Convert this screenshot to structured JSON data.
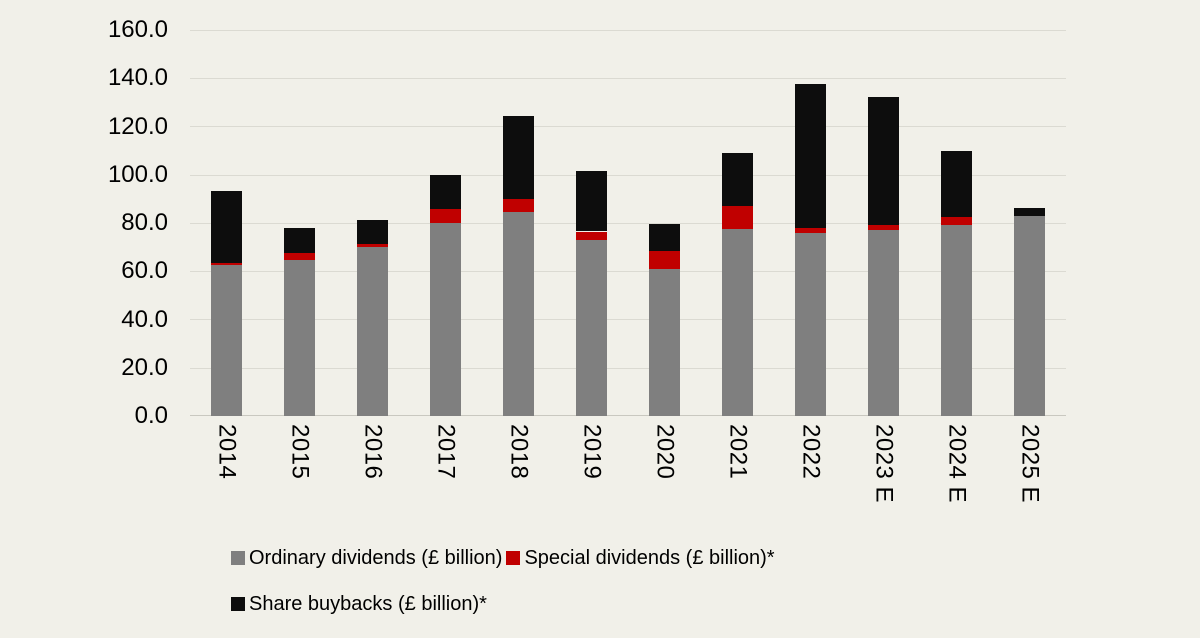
{
  "chart_data": {
    "type": "bar",
    "stacked": true,
    "title": "",
    "categories": [
      "2014",
      "2015",
      "2016",
      "2017",
      "2018",
      "2019",
      "2020",
      "2021",
      "2022",
      "2023 E",
      "2024 E",
      "2025 E"
    ],
    "series": [
      {
        "name": "Ordinary dividends (£ billion)",
        "key": "ordinary-dividends",
        "color": "#7f7f7f",
        "values": [
          62.5,
          64.5,
          70.0,
          80.0,
          84.5,
          73.0,
          61.0,
          77.5,
          76.0,
          77.0,
          79.0,
          83.0
        ]
      },
      {
        "name": "Special dividends (£ billion)*",
        "key": "special-dividends",
        "color": "#c00000",
        "values": [
          1.0,
          3.0,
          1.5,
          6.0,
          5.5,
          3.5,
          7.5,
          9.5,
          2.0,
          2.0,
          3.5,
          0.0
        ]
      },
      {
        "name": "Share buybacks (£ billion)*",
        "key": "share-buybacks",
        "color": "#0d0d0d",
        "values": [
          30.0,
          10.5,
          10.0,
          14.0,
          34.5,
          25.0,
          11.0,
          22.0,
          59.5,
          53.0,
          27.5,
          3.5
        ]
      }
    ],
    "stack_totals": [
      93.5,
      78.0,
      81.5,
      100.0,
      124.5,
      101.5,
      79.5,
      109.0,
      137.5,
      132.0,
      110.0,
      86.5
    ],
    "ylim": [
      0,
      160
    ],
    "ytick_step": 20,
    "ytick_decimals": 1,
    "ytick_labels": [
      "0.0",
      "20.0",
      "40.0",
      "60.0",
      "80.0",
      "100.0",
      "120.0",
      "140.0",
      "160.0"
    ],
    "grid": true,
    "legend_position": "bottom-left",
    "legend_rows": [
      [
        0,
        1
      ],
      [
        2
      ]
    ],
    "colors": {
      "background": "#f1f0e9",
      "gridline": "#dbdad2",
      "baseline": "#c9c8c0",
      "text": "#000000"
    }
  }
}
